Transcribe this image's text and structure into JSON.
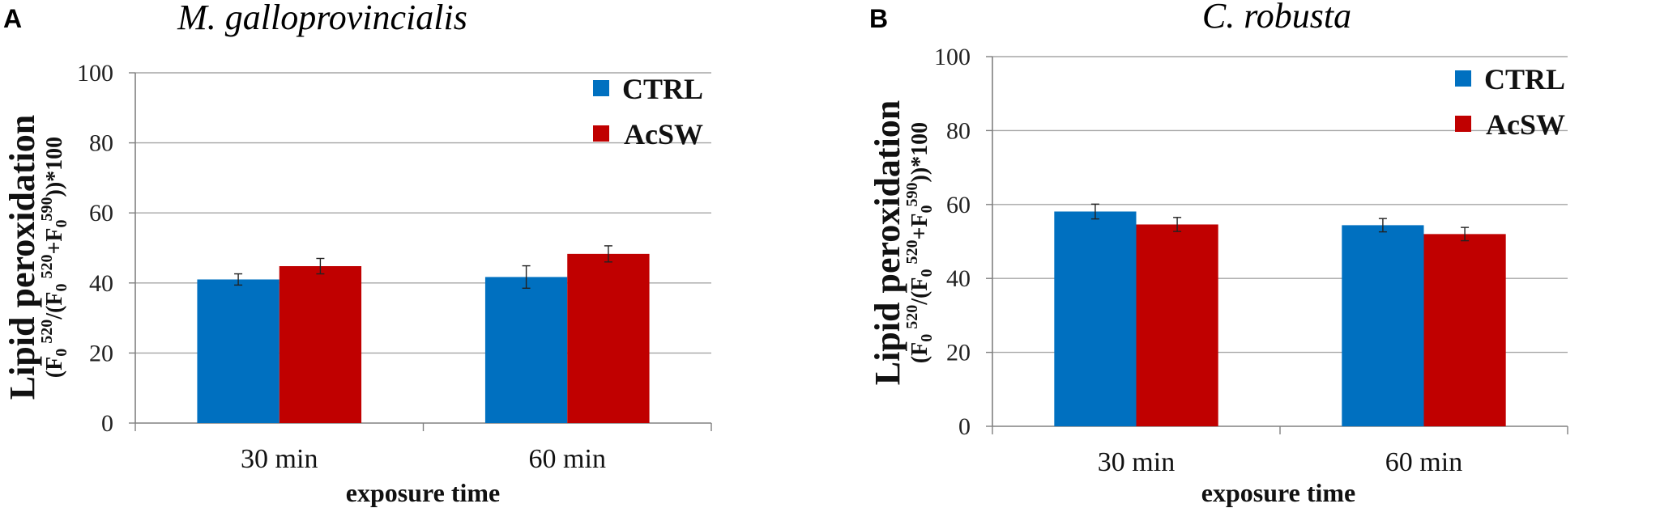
{
  "chart_data": [
    {
      "panel": "A",
      "type": "bar",
      "title": "M. galloprovincialis",
      "xlabel": "exposure time",
      "ylabel": "Lipid peroxidation",
      "ylabel_sub": [
        "(F",
        "0",
        "520",
        "/(F",
        "0",
        "520",
        "+F",
        "0",
        "590",
        "))*100"
      ],
      "categories": [
        "30 min",
        "60 min"
      ],
      "yticks": [
        "0",
        "20",
        "40",
        "60",
        "80",
        "100"
      ],
      "ylim": [
        0,
        100
      ],
      "grid": true,
      "legend_position": "top-right",
      "series": [
        {
          "name": "CTRL",
          "color": "#0070c0",
          "values": [
            41,
            41.7
          ],
          "errors": [
            1.6,
            3.2
          ]
        },
        {
          "name": "AcSW",
          "color": "#c00000",
          "values": [
            44.8,
            48.3
          ],
          "errors": [
            2.2,
            2.3
          ]
        }
      ]
    },
    {
      "panel": "B",
      "type": "bar",
      "title": "C. robusta",
      "xlabel": "exposure time",
      "ylabel": "Lipid peroxidation",
      "ylabel_sub": [
        "(F",
        "0",
        "520",
        "/(F",
        "0",
        "520",
        "+F",
        "0",
        "590",
        "))*100"
      ],
      "categories": [
        "30 min",
        "60 min"
      ],
      "yticks": [
        "0",
        "20",
        "40",
        "60",
        "80",
        "100"
      ],
      "ylim": [
        0,
        100
      ],
      "grid": true,
      "legend_position": "top-right",
      "series": [
        {
          "name": "CTRL",
          "color": "#0070c0",
          "values": [
            58.1,
            54.4
          ],
          "errors": [
            2.0,
            1.8
          ]
        },
        {
          "name": "AcSW",
          "color": "#c00000",
          "values": [
            54.6,
            52.0
          ],
          "errors": [
            1.9,
            1.8
          ]
        }
      ]
    }
  ]
}
